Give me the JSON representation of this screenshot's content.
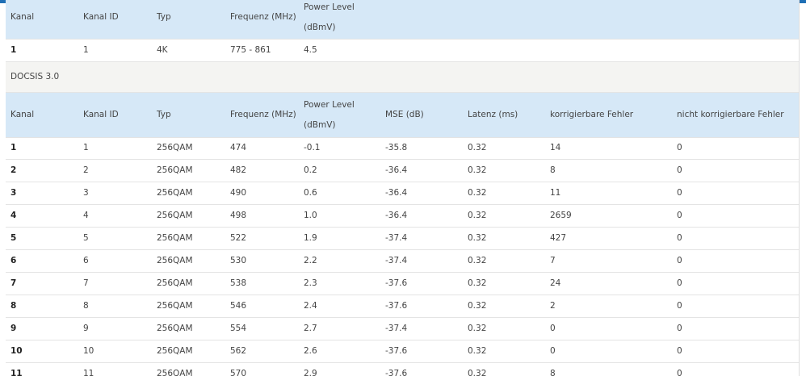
{
  "table1": {
    "headers": [
      "Kanal",
      "Kanal ID",
      "Typ",
      "Frequenz (MHz)",
      "Power Level (dBmV)"
    ],
    "rows": [
      [
        "1",
        "1",
        "4K",
        "775 - 861",
        "4.5"
      ]
    ]
  },
  "section": "DOCSIS 3.0",
  "table2": {
    "headers": [
      "Kanal",
      "Kanal ID",
      "Typ",
      "Frequenz (MHz)",
      "Power Level (dBmV)",
      "MSE (dB)",
      "Latenz (ms)",
      "korrigierbare Fehler",
      "nicht korrigierbare Fehler"
    ],
    "rows": [
      [
        "1",
        "1",
        "256QAM",
        "474",
        "-0.1",
        "-35.8",
        "0.32",
        "14",
        "0"
      ],
      [
        "2",
        "2",
        "256QAM",
        "482",
        "0.2",
        "-36.4",
        "0.32",
        "8",
        "0"
      ],
      [
        "3",
        "3",
        "256QAM",
        "490",
        "0.6",
        "-36.4",
        "0.32",
        "11",
        "0"
      ],
      [
        "4",
        "4",
        "256QAM",
        "498",
        "1.0",
        "-36.4",
        "0.32",
        "2659",
        "0"
      ],
      [
        "5",
        "5",
        "256QAM",
        "522",
        "1.9",
        "-37.4",
        "0.32",
        "427",
        "0"
      ],
      [
        "6",
        "6",
        "256QAM",
        "530",
        "2.2",
        "-37.4",
        "0.32",
        "7",
        "0"
      ],
      [
        "7",
        "7",
        "256QAM",
        "538",
        "2.3",
        "-37.6",
        "0.32",
        "24",
        "0"
      ],
      [
        "8",
        "8",
        "256QAM",
        "546",
        "2.4",
        "-37.6",
        "0.32",
        "2",
        "0"
      ],
      [
        "9",
        "9",
        "256QAM",
        "554",
        "2.7",
        "-37.4",
        "0.32",
        "0",
        "0"
      ],
      [
        "10",
        "10",
        "256QAM",
        "562",
        "2.6",
        "-37.6",
        "0.32",
        "0",
        "0"
      ],
      [
        "11",
        "11",
        "256QAM",
        "570",
        "2.9",
        "-37.6",
        "0.32",
        "8",
        "0"
      ]
    ]
  }
}
